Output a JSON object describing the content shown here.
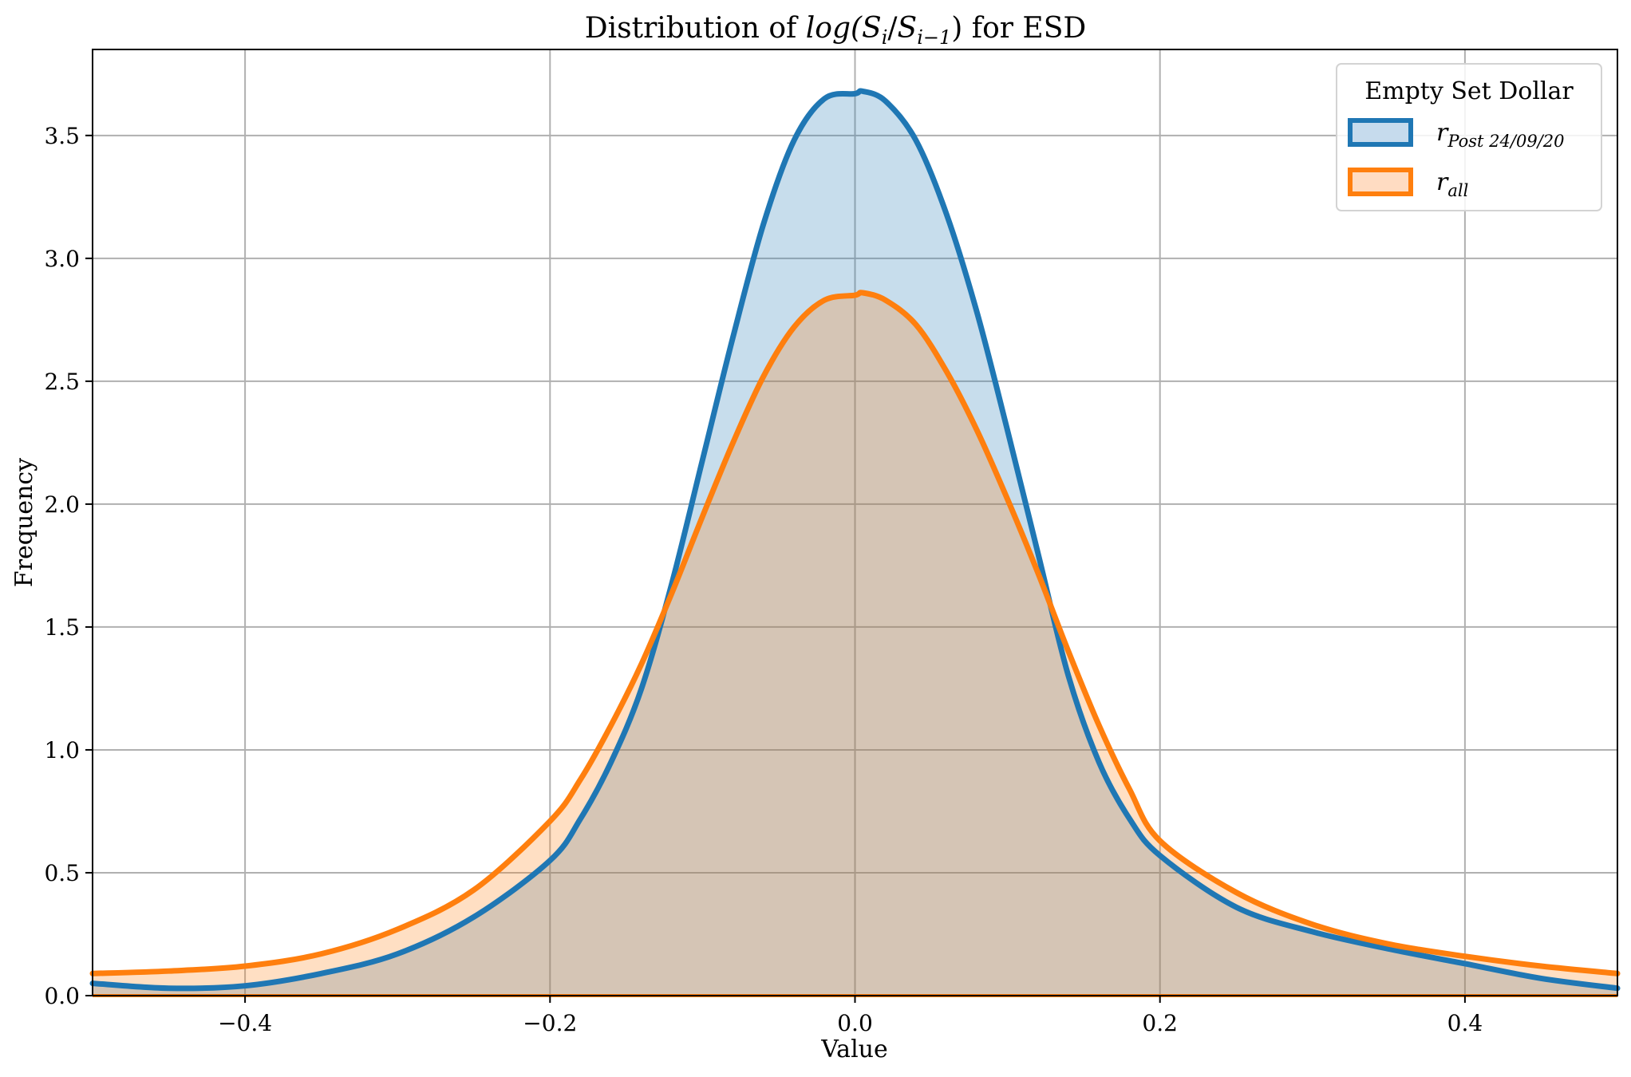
{
  "chart_data": {
    "type": "area",
    "title_prefix": "Distribution of ",
    "title_math": {
      "fn": "log(",
      "a": "S",
      "a_sub": "i",
      "sep": "/",
      "b": "S",
      "b_sub": "i−1",
      "close": ")"
    },
    "title_suffix": " for ESD",
    "xlabel": "Value",
    "ylabel": "Frequency",
    "xlim": [
      -0.5,
      0.5
    ],
    "ylim": [
      0.0,
      3.85
    ],
    "xticks": [
      -0.4,
      -0.2,
      0.0,
      0.2,
      0.4
    ],
    "xtick_labels": [
      "−0.4",
      "−0.2",
      "0.0",
      "0.2",
      "0.4"
    ],
    "yticks": [
      0.0,
      0.5,
      1.0,
      1.5,
      2.0,
      2.5,
      3.0,
      3.5
    ],
    "ytick_labels": [
      "0.0",
      "0.5",
      "1.0",
      "1.5",
      "2.0",
      "2.5",
      "3.0",
      "3.5"
    ],
    "grid": true,
    "legend": {
      "title": "Empty Set Dollar",
      "placement": "top-right"
    },
    "series": [
      {
        "name": "r",
        "name_sub": "Post 24/09/20",
        "color": "#1f77b4",
        "fill": "#c6dbed",
        "x": [
          -0.5,
          -0.45,
          -0.4,
          -0.35,
          -0.3,
          -0.25,
          -0.2,
          -0.18,
          -0.16,
          -0.14,
          -0.12,
          -0.1,
          -0.08,
          -0.06,
          -0.04,
          -0.02,
          0.0,
          0.005,
          0.02,
          0.04,
          0.06,
          0.08,
          0.1,
          0.12,
          0.14,
          0.16,
          0.18,
          0.2,
          0.25,
          0.3,
          0.35,
          0.4,
          0.45,
          0.5
        ],
        "y": [
          0.05,
          0.03,
          0.04,
          0.09,
          0.17,
          0.32,
          0.55,
          0.72,
          0.95,
          1.25,
          1.68,
          2.18,
          2.68,
          3.14,
          3.48,
          3.65,
          3.67,
          3.68,
          3.64,
          3.48,
          3.18,
          2.78,
          2.3,
          1.8,
          1.3,
          0.95,
          0.72,
          0.57,
          0.36,
          0.26,
          0.19,
          0.13,
          0.07,
          0.03
        ]
      },
      {
        "name": "r",
        "name_sub": "all",
        "color": "#ff7f0e",
        "fill": "#ffdcc2",
        "x": [
          -0.5,
          -0.45,
          -0.4,
          -0.35,
          -0.3,
          -0.25,
          -0.2,
          -0.18,
          -0.16,
          -0.14,
          -0.12,
          -0.1,
          -0.08,
          -0.06,
          -0.04,
          -0.02,
          0.0,
          0.005,
          0.02,
          0.04,
          0.06,
          0.08,
          0.1,
          0.12,
          0.14,
          0.16,
          0.18,
          0.2,
          0.25,
          0.3,
          0.35,
          0.4,
          0.45,
          0.5
        ],
        "y": [
          0.09,
          0.1,
          0.12,
          0.17,
          0.27,
          0.43,
          0.71,
          0.88,
          1.1,
          1.35,
          1.64,
          1.95,
          2.25,
          2.52,
          2.72,
          2.83,
          2.85,
          2.86,
          2.83,
          2.73,
          2.54,
          2.3,
          2.02,
          1.72,
          1.4,
          1.1,
          0.84,
          0.63,
          0.42,
          0.29,
          0.21,
          0.16,
          0.12,
          0.09
        ]
      }
    ]
  }
}
